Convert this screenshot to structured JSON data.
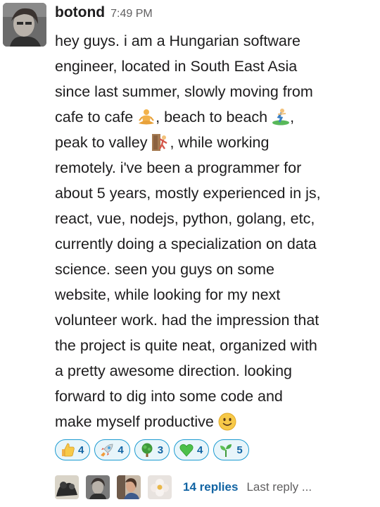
{
  "message": {
    "author": "botond",
    "time": "7:49 PM",
    "lines": [
      [
        "hey guys. i am a Hungarian software"
      ],
      [
        "engineer, located in South East Asia"
      ],
      [
        "since last summer, slowly moving from"
      ],
      [
        "cafe to cafe ",
        ", beach to beach ",
        ","
      ],
      [
        "peak to valley ",
        ", while working"
      ],
      [
        "remotely. i've been a programmer for"
      ],
      [
        "about 5 years, mostly experienced in js,"
      ],
      [
        "react, vue, nodejs, python, golang, etc,"
      ],
      [
        "currently doing a specialization on data"
      ],
      [
        "science. seen you guys on some"
      ],
      [
        "website, while looking for my next"
      ],
      [
        "volunteer work. had the impression that"
      ],
      [
        "the project is quite neat, organized with"
      ],
      [
        "a pretty awesome direction. looking"
      ],
      [
        "forward to dig into some code and"
      ],
      [
        "make myself productive "
      ]
    ],
    "inline_emojis": [
      "person-in-lotus-position-icon",
      "person-surfing-icon",
      "person-climbing-icon",
      "slightly-smiling-face-icon"
    ]
  },
  "reactions": [
    {
      "icon": "thumbs-up-icon",
      "count": "4"
    },
    {
      "icon": "rocket-icon",
      "count": "4"
    },
    {
      "icon": "tree-icon",
      "count": "3"
    },
    {
      "icon": "green-heart-icon",
      "count": "4"
    },
    {
      "icon": "seedling-icon",
      "count": "5"
    }
  ],
  "thread": {
    "replies_label": "14 replies",
    "last_reply_label": "Last reply ..."
  },
  "colors": {
    "reaction_border": "#1d9bd1",
    "reaction_bg": "#e8f5fa",
    "link": "#1264a3"
  }
}
